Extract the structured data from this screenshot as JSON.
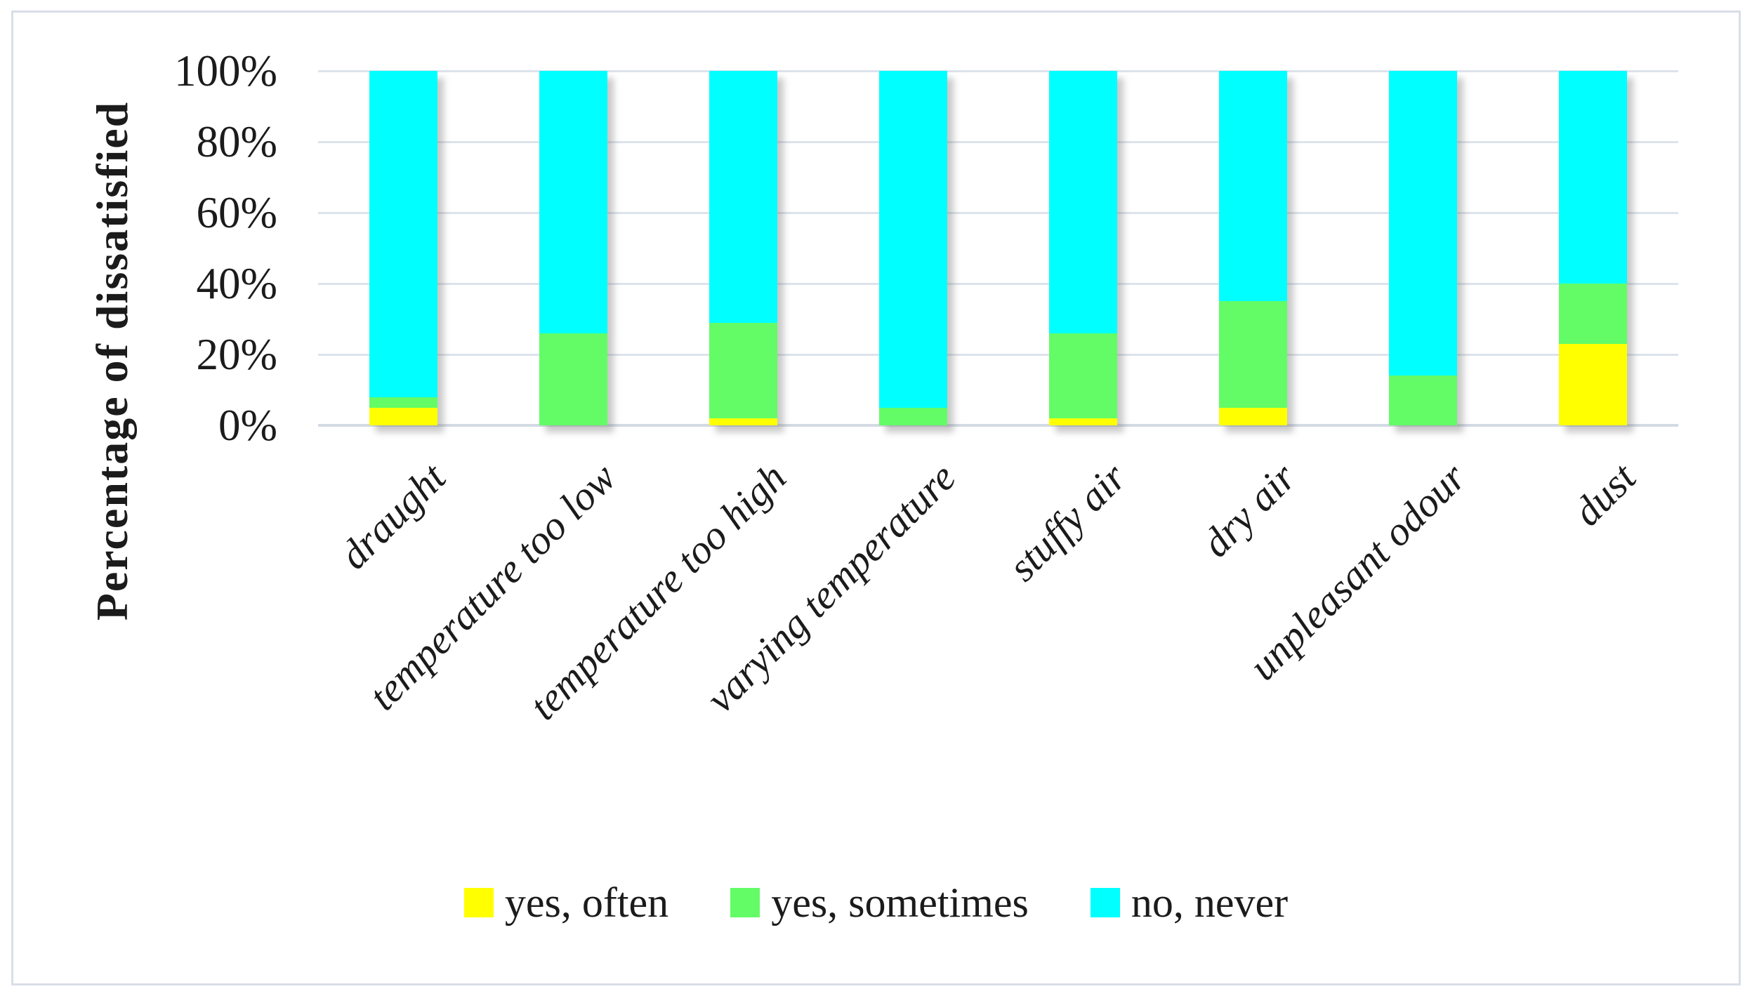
{
  "figure": {
    "background_color": "#ffffff",
    "border_color": "#d9dee8",
    "gridline_color": "#dde3ec",
    "axisline_color": "#d3dae4",
    "text_color": "#1b1b1b"
  },
  "chart_data": {
    "type": "bar",
    "stacked": true,
    "orientation": "vertical",
    "title": "",
    "xlabel": "",
    "ylabel": "Percentage of dissatisfied",
    "categories": [
      "draught",
      "temperature too low",
      "temperature too high",
      "varying temperature",
      "stuffy air",
      "dry air",
      "unpleasant odour",
      "dust"
    ],
    "series": [
      {
        "name": "yes, often",
        "color": "#ffff00",
        "values": [
          5,
          0,
          2,
          0,
          2,
          5,
          0,
          23
        ]
      },
      {
        "name": "yes, sometimes",
        "color": "#63fc66",
        "values": [
          3,
          26,
          27,
          5,
          24,
          30,
          14,
          17
        ]
      },
      {
        "name": "no, never",
        "color": "#00ffff",
        "values": [
          92,
          74,
          71,
          95,
          74,
          65,
          86,
          60
        ]
      }
    ],
    "ylim": [
      0,
      100
    ],
    "y_tick_step": 20,
    "y_ticks": [
      "0%",
      "20%",
      "40%",
      "60%",
      "80%",
      "100%"
    ],
    "grid": "horizontal",
    "legend_position": "bottom"
  }
}
